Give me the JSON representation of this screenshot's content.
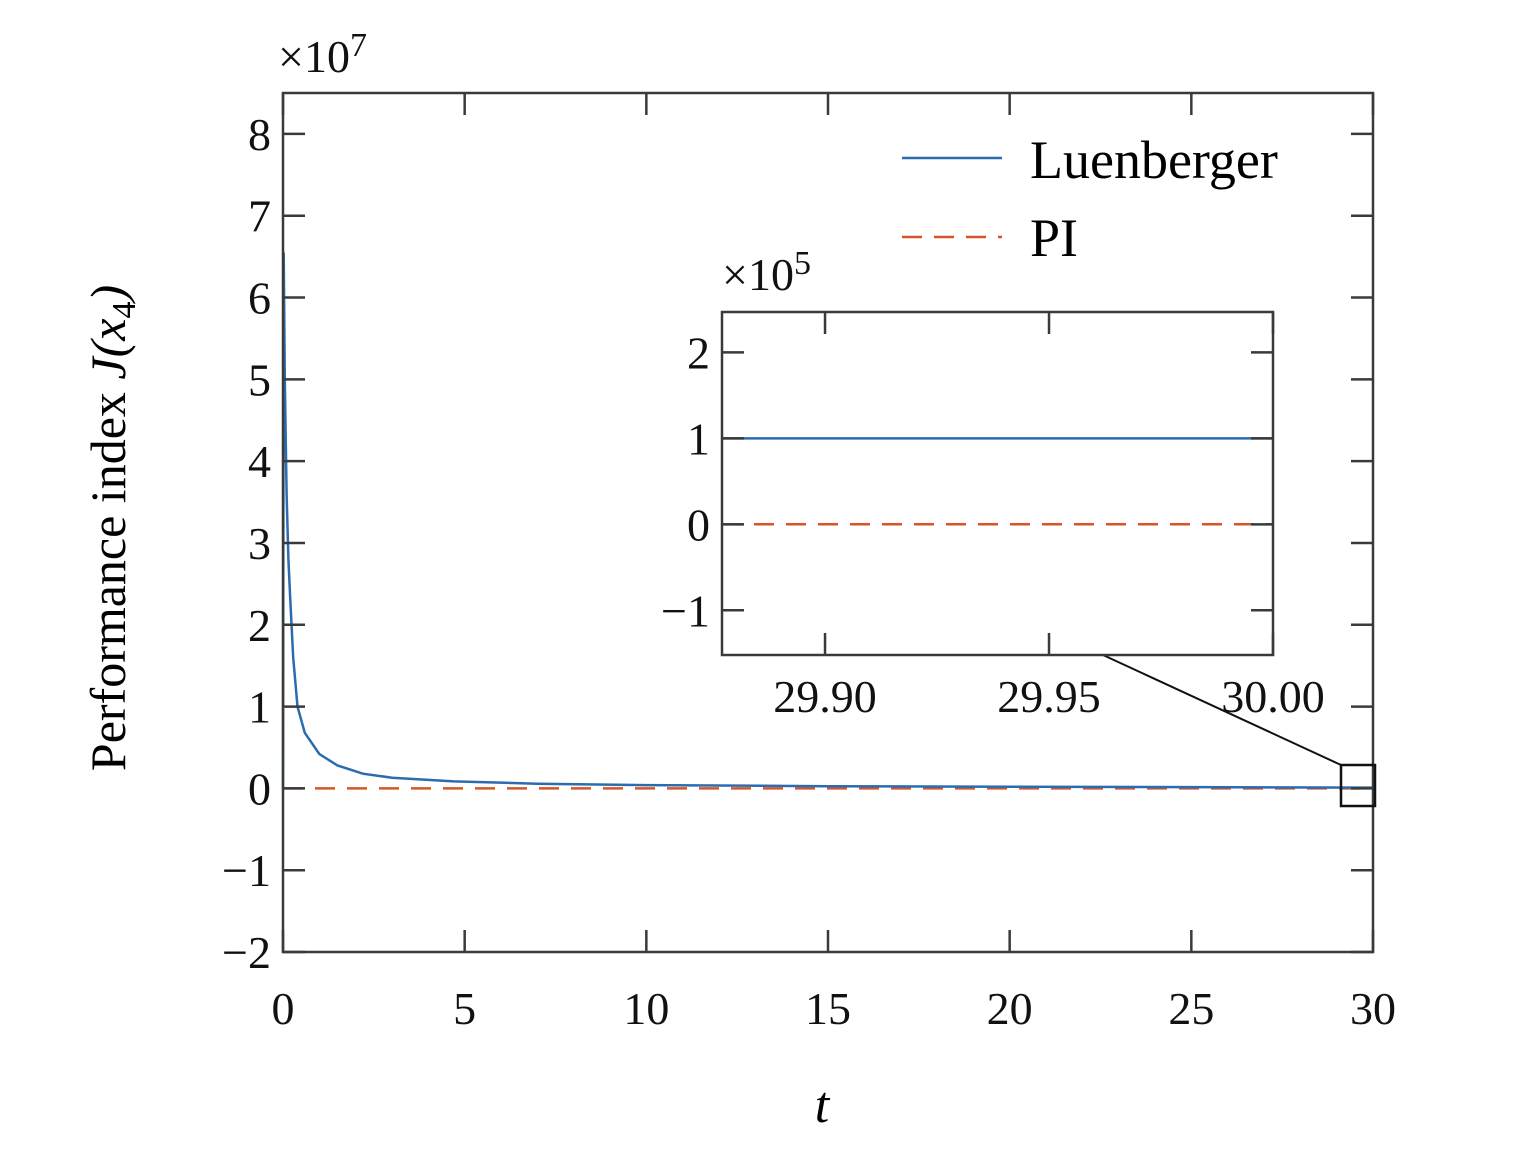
{
  "chart_data": {
    "type": "line",
    "xlabel": "t",
    "ylabel_prefix": "Performance index ",
    "ylabel_J": "J(",
    "ylabel_x": "x",
    "ylabel_sub": "4",
    "ylabel_close": ")",
    "y_multiplier": "×10",
    "y_multiplier_exp": "7",
    "xlim": [
      0,
      30
    ],
    "ylim": [
      -2,
      8.5
    ],
    "xticks": [
      0,
      5,
      10,
      15,
      20,
      25,
      30
    ],
    "xtick_labels": [
      "0",
      "5",
      "10",
      "15",
      "20",
      "25",
      "30"
    ],
    "yticks": [
      -2,
      -1,
      0,
      1,
      2,
      3,
      4,
      5,
      6,
      7,
      8
    ],
    "ytick_labels": [
      "−2",
      "−1",
      "0",
      "1",
      "2",
      "3",
      "4",
      "5",
      "6",
      "7",
      "8"
    ],
    "legend_position": "top-right",
    "colors": {
      "Luenberger": "#2b6cb0",
      "PI": "#d4572a"
    },
    "series": [
      {
        "name": "Luenberger",
        "style": "solid",
        "x": [
          0,
          0.02,
          0.05,
          0.1,
          0.15,
          0.2,
          0.28,
          0.4,
          0.6,
          1,
          1.5,
          2.2,
          3,
          4.7,
          7,
          10,
          15,
          20,
          25,
          30
        ],
        "y": [
          0,
          6.55,
          5.0,
          3.6,
          2.8,
          2.3,
          1.6,
          1.0,
          0.68,
          0.42,
          0.28,
          0.18,
          0.13,
          0.085,
          0.057,
          0.04,
          0.027,
          0.02,
          0.016,
          0.01
        ]
      },
      {
        "name": "PI",
        "style": "dashed",
        "x": [
          0,
          30
        ],
        "y": [
          0,
          0
        ]
      }
    ],
    "zoom_region": {
      "x": [
        29.1,
        30.05
      ],
      "y": [
        -0.25,
        0.25
      ]
    },
    "inset": {
      "y_multiplier": "×10",
      "y_multiplier_exp": "5",
      "xlim": [
        29.877,
        30.0
      ],
      "ylim": [
        -1.52,
        2.47
      ],
      "xticks": [
        29.9,
        29.95,
        30.0
      ],
      "xtick_labels": [
        "29.90",
        "29.95",
        "30.00"
      ],
      "yticks": [
        -1,
        0,
        1,
        2
      ],
      "ytick_labels": [
        "−1",
        "0",
        "1",
        "2"
      ],
      "series": [
        {
          "name": "Luenberger",
          "x": [
            29.877,
            30.0
          ],
          "y": [
            1,
            1
          ]
        },
        {
          "name": "PI",
          "x": [
            29.877,
            30.0
          ],
          "y": [
            0,
            0
          ]
        }
      ]
    }
  }
}
